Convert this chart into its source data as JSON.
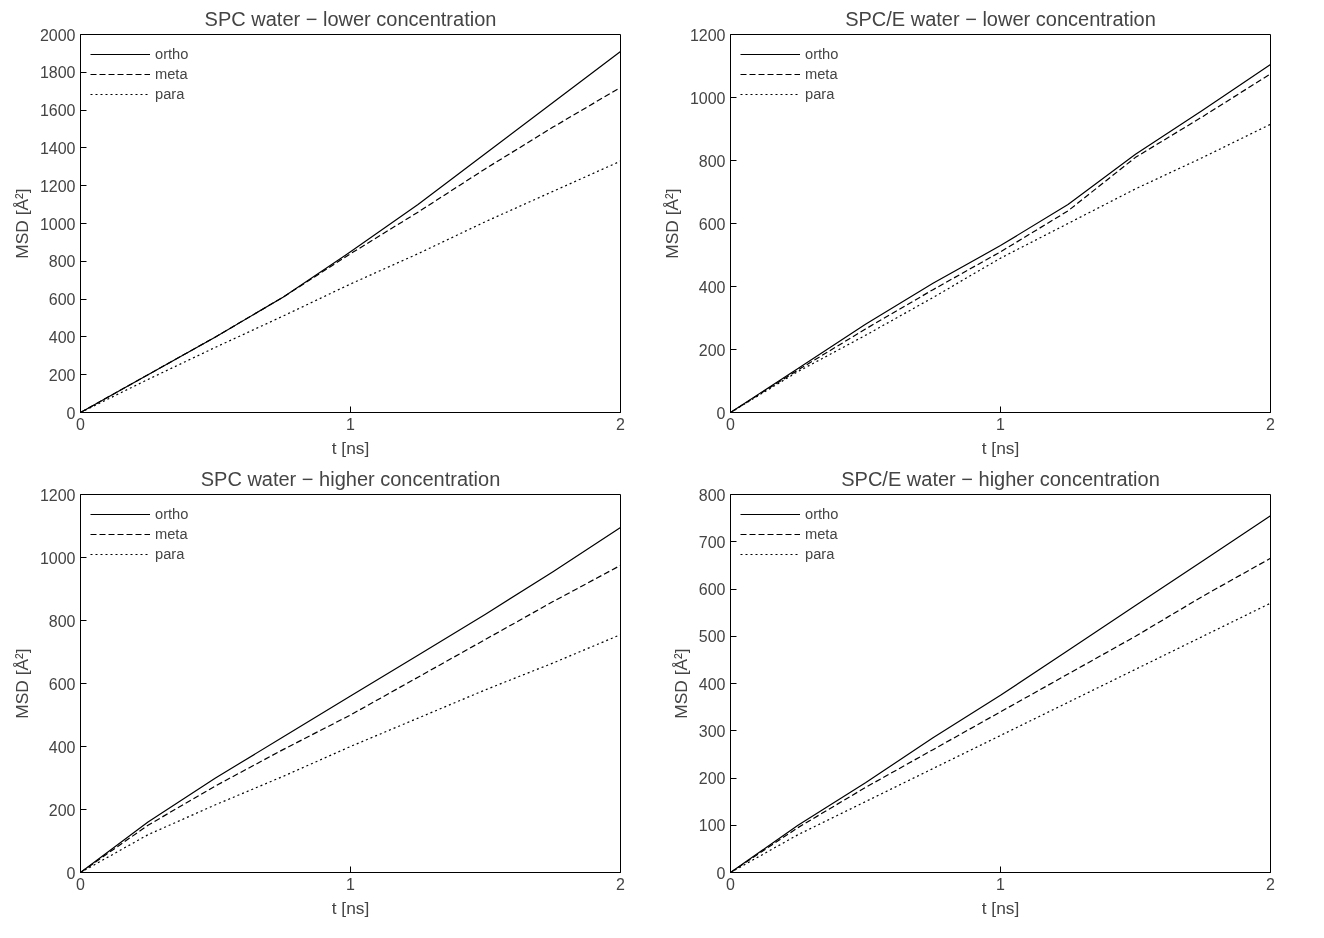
{
  "chart_data": [
    {
      "type": "line",
      "title": "SPC water − lower concentration",
      "xlabel": "t [ns]",
      "ylabel": "MSD [Å²]",
      "x": [
        0,
        0.25,
        0.5,
        0.75,
        1,
        1.25,
        1.5,
        1.75,
        2
      ],
      "xlim": [
        0,
        2
      ],
      "ylim": [
        0,
        2000
      ],
      "xticks": [
        0,
        1,
        2
      ],
      "yticks": [
        0,
        200,
        400,
        600,
        800,
        1000,
        1200,
        1400,
        1600,
        1800,
        2000
      ],
      "grid": false,
      "legend": "top left",
      "series": [
        {
          "name": "ortho",
          "color": "#000000",
          "line_style": "solid",
          "values": [
            0,
            200,
            400,
            610,
            850,
            1100,
            1370,
            1640,
            1910
          ]
        },
        {
          "name": "meta",
          "color": "#000000",
          "line_style": "dashed",
          "values": [
            0,
            200,
            400,
            610,
            840,
            1060,
            1290,
            1510,
            1720
          ]
        },
        {
          "name": "para",
          "color": "#000000",
          "line_style": "dotted",
          "values": [
            0,
            175,
            345,
            510,
            680,
            840,
            1010,
            1170,
            1330
          ]
        }
      ]
    },
    {
      "type": "line",
      "title": "SPC/E water − lower concentration",
      "xlabel": "t [ns]",
      "ylabel": "MSD [Å²]",
      "x": [
        0,
        0.25,
        0.5,
        0.75,
        1,
        1.25,
        1.5,
        1.75,
        2
      ],
      "xlim": [
        0,
        2
      ],
      "ylim": [
        0,
        1200
      ],
      "xticks": [
        0,
        1,
        2
      ],
      "yticks": [
        0,
        200,
        400,
        600,
        800,
        1000,
        1200
      ],
      "grid": false,
      "legend": "top left",
      "series": [
        {
          "name": "ortho",
          "color": "#000000",
          "line_style": "solid",
          "values": [
            0,
            140,
            280,
            410,
            530,
            660,
            820,
            960,
            1105
          ]
        },
        {
          "name": "meta",
          "color": "#000000",
          "line_style": "dashed",
          "values": [
            0,
            135,
            265,
            390,
            510,
            640,
            810,
            940,
            1075
          ]
        },
        {
          "name": "para",
          "color": "#000000",
          "line_style": "dotted",
          "values": [
            0,
            130,
            245,
            365,
            490,
            600,
            710,
            810,
            915
          ]
        }
      ]
    },
    {
      "type": "line",
      "title": "SPC water − higher concentration",
      "xlabel": "t [ns]",
      "ylabel": "MSD [Å²]",
      "x": [
        0,
        0.25,
        0.5,
        0.75,
        1,
        1.25,
        1.5,
        1.75,
        2
      ],
      "xlim": [
        0,
        2
      ],
      "ylim": [
        0,
        1200
      ],
      "xticks": [
        0,
        1,
        2
      ],
      "yticks": [
        0,
        200,
        400,
        600,
        800,
        1000,
        1200
      ],
      "grid": false,
      "legend": "top left",
      "series": [
        {
          "name": "ortho",
          "color": "#000000",
          "line_style": "solid",
          "values": [
            0,
            160,
            300,
            430,
            560,
            690,
            820,
            955,
            1095
          ]
        },
        {
          "name": "meta",
          "color": "#000000",
          "line_style": "dashed",
          "values": [
            0,
            150,
            275,
            390,
            500,
            620,
            740,
            860,
            975
          ]
        },
        {
          "name": "para",
          "color": "#000000",
          "line_style": "dotted",
          "values": [
            0,
            120,
            215,
            305,
            400,
            490,
            580,
            665,
            755
          ]
        }
      ]
    },
    {
      "type": "line",
      "title": "SPC/E water − higher concentration",
      "xlabel": "t [ns]",
      "ylabel": "MSD [Å²]",
      "x": [
        0,
        0.25,
        0.5,
        0.75,
        1,
        1.25,
        1.5,
        1.75,
        2
      ],
      "xlim": [
        0,
        2
      ],
      "ylim": [
        0,
        800
      ],
      "xticks": [
        0,
        1,
        2
      ],
      "yticks": [
        0,
        100,
        200,
        300,
        400,
        500,
        600,
        700,
        800
      ],
      "grid": false,
      "legend": "top left",
      "series": [
        {
          "name": "ortho",
          "color": "#000000",
          "line_style": "solid",
          "values": [
            0,
            100,
            190,
            285,
            375,
            470,
            565,
            660,
            755
          ]
        },
        {
          "name": "meta",
          "color": "#000000",
          "line_style": "dashed",
          "values": [
            0,
            95,
            180,
            260,
            340,
            420,
            500,
            585,
            665
          ]
        },
        {
          "name": "para",
          "color": "#000000",
          "line_style": "dotted",
          "values": [
            0,
            80,
            150,
            220,
            290,
            360,
            430,
            500,
            570
          ]
        }
      ]
    }
  ]
}
